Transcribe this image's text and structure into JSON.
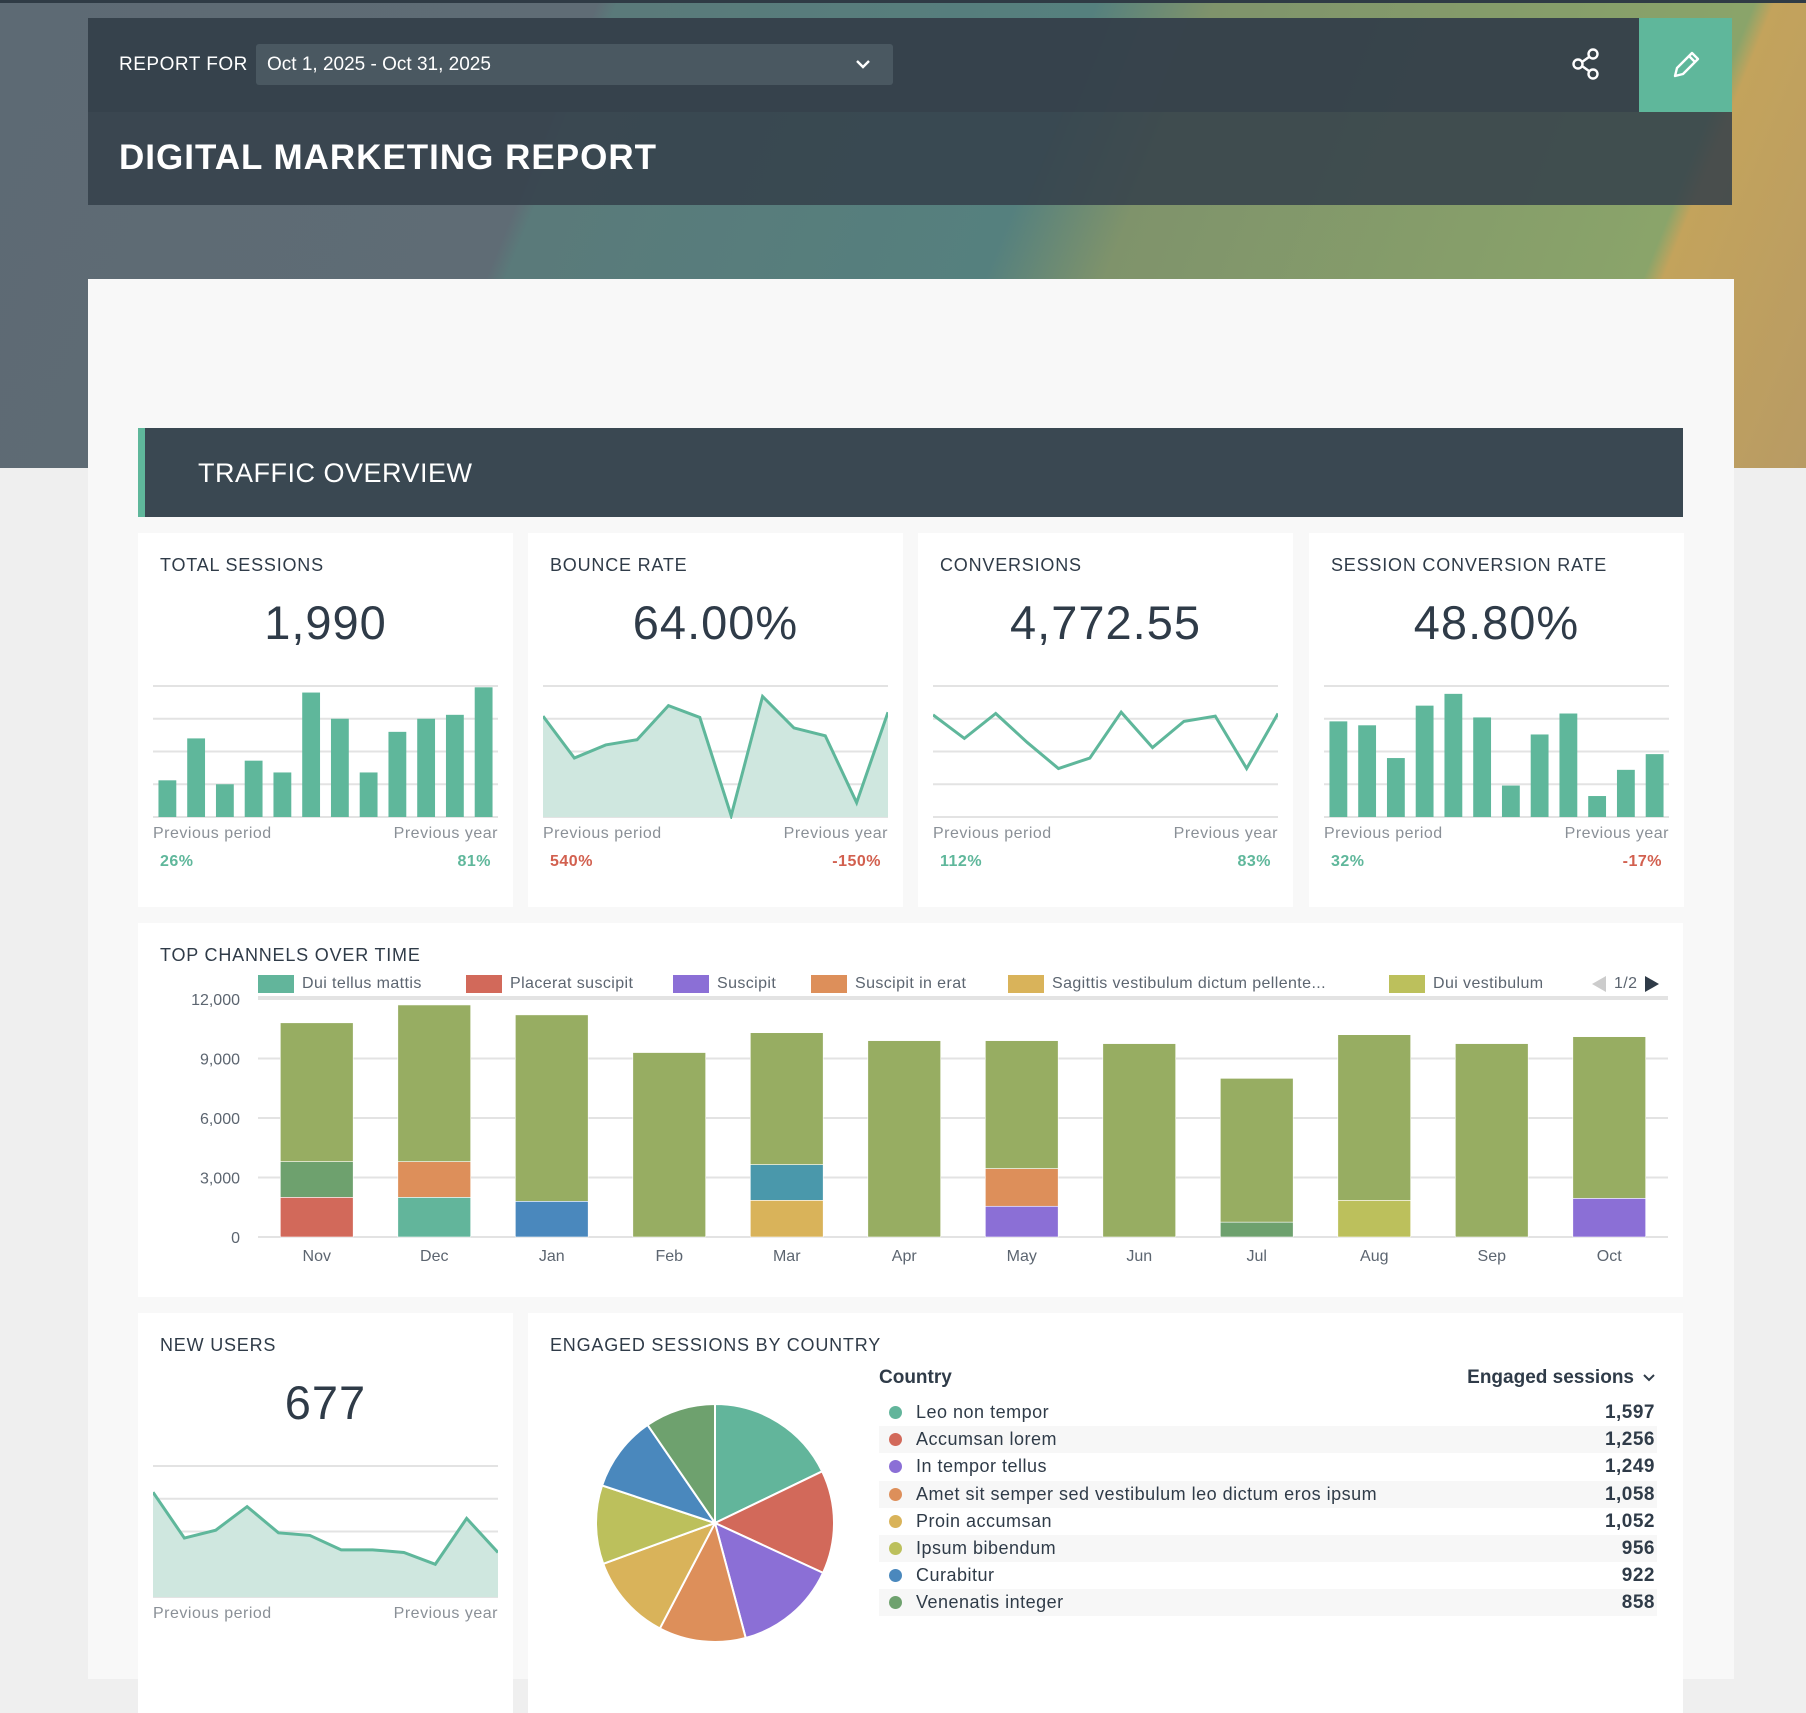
{
  "header": {
    "report_for_label": "REPORT FOR",
    "date_range": "Oct 1, 2025 - Oct 31, 2025",
    "title": "DIGITAL MARKETING REPORT",
    "share_icon": "share-icon",
    "edit_icon": "pencil-icon",
    "accent": "#5fb79b"
  },
  "section": {
    "title": "TRAFFIC OVERVIEW"
  },
  "kpis": [
    {
      "title": "TOTAL SESSIONS",
      "value": "1,990",
      "spark_type": "bar",
      "spark": [
        28,
        60,
        25,
        43,
        34,
        95,
        75,
        34,
        65,
        75,
        78,
        99
      ],
      "prev_period_label": "Previous period",
      "prev_year_label": "Previous year",
      "prev_period": "26%",
      "prev_year": "81%",
      "prev_period_trend": "pos",
      "prev_year_trend": "pos"
    },
    {
      "title": "BOUNCE RATE",
      "value": "64.00%",
      "spark_type": "area",
      "spark": [
        77,
        45,
        55,
        59,
        85,
        76,
        1,
        92,
        68,
        62,
        11,
        80
      ],
      "prev_period_label": "Previous period",
      "prev_year_label": "Previous year",
      "prev_period": "540%",
      "prev_year": "-150%",
      "prev_period_trend": "neg",
      "prev_year_trend": "neg"
    },
    {
      "title": "CONVERSIONS",
      "value": "4,772.55",
      "spark_type": "line",
      "spark": [
        78,
        60,
        79,
        57,
        37,
        45,
        80,
        53,
        73,
        77,
        37,
        79
      ],
      "prev_period_label": "Previous period",
      "prev_year_label": "Previous year",
      "prev_period": "112%",
      "prev_year": "83%",
      "prev_period_trend": "pos",
      "prev_year_trend": "pos"
    },
    {
      "title": "SESSION CONVERSION RATE",
      "value": "48.80%",
      "spark_type": "bar",
      "spark": [
        73,
        70,
        45,
        85,
        94,
        76,
        24,
        63,
        79,
        16,
        36,
        48
      ],
      "prev_period_label": "Previous period",
      "prev_year_label": "Previous year",
      "prev_period": "32%",
      "prev_year": "-17%",
      "prev_period_trend": "pos",
      "prev_year_trend": "neg"
    }
  ],
  "new_users": {
    "title": "NEW USERS",
    "value": "677",
    "spark_type": "area",
    "spark": [
      80,
      45,
      51,
      69,
      49,
      47,
      36,
      36,
      34,
      25,
      60,
      34
    ],
    "prev_period_label": "Previous period",
    "prev_year_label": "Previous year"
  },
  "chart_data": [
    {
      "type": "bar",
      "stacked": true,
      "title": "TOP CHANNELS OVER TIME",
      "categories": [
        "Nov",
        "Dec",
        "Jan",
        "Feb",
        "Mar",
        "Apr",
        "May",
        "Jun",
        "Jul",
        "Aug",
        "Sep",
        "Oct"
      ],
      "ylim": [
        0,
        12000
      ],
      "yticks": [
        "0",
        "3,000",
        "6,000",
        "9,000",
        "12,000"
      ],
      "grid": true,
      "legend": "top",
      "legend_page": "1/2",
      "series": [
        {
          "name": "Dui tellus mattis",
          "color": "#62b59b",
          "values": [
            0,
            2000,
            0,
            0,
            0,
            0,
            0,
            0,
            0,
            0,
            0,
            0
          ]
        },
        {
          "name": "Placerat suscipit",
          "color": "#d2695a",
          "values": [
            2000,
            0,
            0,
            0,
            0,
            0,
            0,
            0,
            0,
            0,
            0,
            0
          ]
        },
        {
          "name": "Suscipit",
          "color": "#8b6fd6",
          "values": [
            0,
            0,
            0,
            0,
            0,
            0,
            1550,
            0,
            0,
            0,
            0,
            1950
          ]
        },
        {
          "name": "Suscipit in erat",
          "color": "#dd8f5a",
          "values": [
            0,
            1800,
            0,
            0,
            0,
            0,
            1900,
            0,
            0,
            0,
            0,
            0
          ]
        },
        {
          "name": "Sagittis vestibulum dictum pellente...",
          "color": "#d9b35a",
          "values": [
            0,
            0,
            0,
            0,
            1850,
            0,
            0,
            0,
            0,
            0,
            0,
            0
          ]
        },
        {
          "name": "Dui vestibulum",
          "color": "#bcc05c",
          "values": [
            0,
            0,
            0,
            0,
            0,
            0,
            0,
            0,
            0,
            1850,
            0,
            0
          ]
        },
        {
          "color": "#4a88bd",
          "values": [
            0,
            0,
            1800,
            0,
            0,
            0,
            0,
            0,
            0,
            0,
            0,
            0
          ]
        },
        {
          "color": "#4a98ab",
          "values": [
            0,
            0,
            0,
            0,
            1800,
            0,
            0,
            0,
            0,
            0,
            0,
            0
          ]
        },
        {
          "color": "#6ea16e",
          "values": [
            1800,
            0,
            0,
            0,
            0,
            0,
            0,
            0,
            750,
            0,
            0,
            0
          ]
        },
        {
          "color": "#97ad62",
          "values": [
            7000,
            7900,
            9400,
            9300,
            6650,
            9900,
            6450,
            9750,
            7250,
            8350,
            9750,
            8150
          ]
        }
      ]
    },
    {
      "type": "pie",
      "title": "ENGAGED SESSIONS BY COUNTRY",
      "column_headers": [
        "Country",
        "Engaged sessions"
      ],
      "labels": [
        "Leo non tempor",
        "Accumsan lorem",
        "In tempor tellus",
        "Amet sit semper sed vestibulum leo dictum eros ipsum",
        "Proin accumsan",
        "Ipsum bibendum",
        "Curabitur",
        "Venenatis integer"
      ],
      "values": [
        1597,
        1256,
        1249,
        1058,
        1052,
        956,
        922,
        858
      ],
      "display_values": [
        "1,597",
        "1,256",
        "1,249",
        "1,058",
        "1,052",
        "956",
        "922",
        "858"
      ],
      "colors": [
        "#62b59b",
        "#d2695a",
        "#8b6fd6",
        "#dd8f5a",
        "#d9b35a",
        "#bcc05c",
        "#4a88bd",
        "#6ea16e"
      ]
    }
  ]
}
